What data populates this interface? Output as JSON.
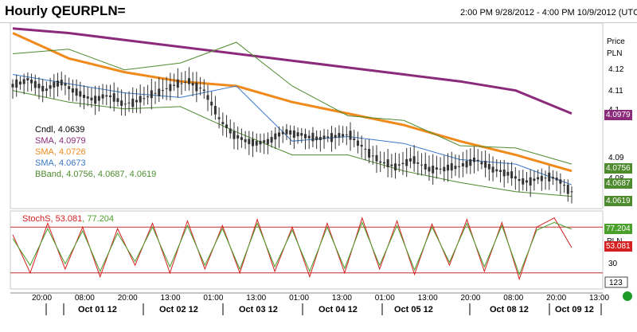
{
  "header": {
    "title": "Hourly QEURPLN=",
    "date_range": "2:00 PM 9/28/2012 - 4:00 PM 10/9/2012 (UTC)"
  },
  "legend": {
    "candle": "Cndl, 4.0639",
    "sma1": "SMA, 4.0979",
    "sma2": "SMA, 4.0726",
    "sma3": "SMA, 4.0673",
    "bband": "BBand, 4.0756, 4.0687, 4.0619"
  },
  "stoch_legend": {
    "name": "StochS",
    "k": "53.081",
    "d": "77.204"
  },
  "price_tags": {
    "sma1": "4.0979",
    "bb_upper": "4.0756",
    "bb_mid": "4.0687",
    "bb_lower": "4.0619",
    "stoch_d": "77.204",
    "stoch_k": "53.081"
  },
  "colors": {
    "sma1": "#8b2a7a",
    "sma2": "#f08a1c",
    "sma3": "#3a78c8",
    "bband": "#4e8a2e",
    "candle": "#333333",
    "stoch_k": "#d42020",
    "stoch_d": "#4aa02a",
    "ref_line": "#c03030"
  },
  "y_axis": {
    "unit_label": "Price",
    "currency": "PLN",
    "ticks": [
      "4.12",
      "4.11",
      "4.1",
      "4.09",
      "4.08"
    ]
  },
  "stoch_axis": {
    "ticks": [
      "30"
    ],
    "unit_label": "PLN",
    "scale_box": "123"
  },
  "x_axis": {
    "time_labels": [
      "20:00",
      "08:00",
      "20:00",
      "13:00",
      "01:00",
      "13:00",
      "01:00",
      "13:00",
      "01:00",
      "13:00",
      "20:00",
      "08:00",
      "20:00",
      "13:00"
    ],
    "day_labels": [
      "Oct 01 12",
      "Oct 02 12",
      "Oct 03 12",
      "Oct 04 12",
      "Oct 05 12",
      "Oct 08 12",
      "Oct 09 12"
    ]
  },
  "chart_data": [
    {
      "type": "line",
      "title": "Hourly QEURPLN=",
      "ylabel": "Price PLN",
      "ylim": [
        4.057,
        4.137
      ],
      "x": [
        0,
        20,
        40,
        60,
        80,
        100,
        120,
        140,
        160,
        180,
        200
      ],
      "series": [
        {
          "name": "SMA",
          "values": [
            4.135,
            4.133,
            4.13,
            4.127,
            4.124,
            4.121,
            4.118,
            4.115,
            4.112,
            4.108,
            4.098
          ]
        },
        {
          "name": "SMA",
          "values": [
            4.133,
            4.122,
            4.116,
            4.112,
            4.11,
            4.103,
            4.098,
            4.093,
            4.086,
            4.08,
            4.073
          ]
        },
        {
          "name": "SMA",
          "values": [
            4.115,
            4.111,
            4.107,
            4.105,
            4.11,
            4.086,
            4.088,
            4.085,
            4.078,
            4.076,
            4.067
          ]
        },
        {
          "name": "BBand",
          "values": [
            4.124,
            4.126,
            4.117,
            4.12,
            4.129,
            4.11,
            4.097,
            4.095,
            4.084,
            4.083,
            4.076
          ]
        },
        {
          "name": "BBand",
          "values": [
            4.108,
            4.103,
            4.1,
            4.101,
            4.09,
            4.08,
            4.08,
            4.073,
            4.068,
            4.064,
            4.062
          ]
        }
      ],
      "close_prices": [
        4.11,
        4.113,
        4.108,
        4.112,
        4.107,
        4.104,
        4.106,
        4.102,
        4.104,
        4.107,
        4.11,
        4.112,
        4.108,
        4.095,
        4.088,
        4.085,
        4.086,
        4.09,
        4.089,
        4.087,
        4.088,
        4.089,
        4.083,
        4.077,
        4.075,
        4.078,
        4.074,
        4.074,
        4.075,
        4.078,
        4.074,
        4.072,
        4.068,
        4.07,
        4.07,
        4.064
      ],
      "last": {
        "candle": 4.0639,
        "sma1": 4.0979,
        "sma2": 4.0726,
        "sma3": 4.0673,
        "bb_upper": 4.0756,
        "bb_mid": 4.0687,
        "bb_lower": 4.0619
      }
    },
    {
      "type": "line",
      "title": "StochS",
      "ylim": [
        0,
        100
      ],
      "reference_lines": [
        80,
        20
      ],
      "series": [
        {
          "name": "StochS",
          "values": [
            70,
            20,
            85,
            25,
            80,
            15,
            78,
            30,
            85,
            20,
            88,
            25,
            82,
            20,
            90,
            22,
            80,
            15,
            85,
            20,
            92,
            25,
            88,
            18,
            84,
            30,
            90,
            22,
            86,
            12,
            80,
            92,
            53.081
          ]
        },
        {
          "name": "StochS",
          "values": [
            65,
            30,
            78,
            32,
            75,
            22,
            72,
            35,
            80,
            28,
            82,
            30,
            78,
            25,
            85,
            28,
            76,
            22,
            80,
            26,
            86,
            30,
            82,
            24,
            80,
            34,
            85,
            28,
            82,
            18,
            76,
            86,
            77.204
          ]
        }
      ],
      "last": {
        "k": 53.081,
        "d": 77.204
      }
    }
  ]
}
